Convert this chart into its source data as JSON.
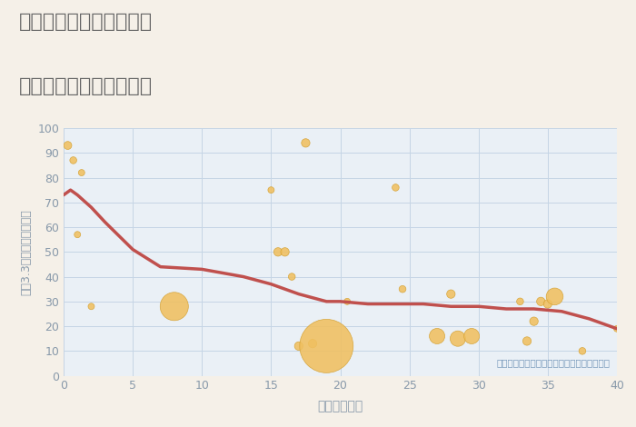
{
  "title_line1": "三重県津市白山町古市の",
  "title_line2": "築年数別中古戸建て価格",
  "xlabel": "築年数（年）",
  "ylabel": "坪（3.3㎡）単価（万円）",
  "bg_color": "#f5f0e8",
  "plot_bg_color": "#eaf0f6",
  "grid_color": "#c5d5e5",
  "title_color": "#666666",
  "axis_color": "#8899aa",
  "annotation": "円の大きさは、取引のあった物件面積を示す",
  "annotation_color": "#7799bb",
  "xlim": [
    0,
    40
  ],
  "ylim": [
    0,
    100
  ],
  "xticks": [
    0,
    5,
    10,
    15,
    20,
    25,
    30,
    35,
    40
  ],
  "yticks": [
    0,
    10,
    20,
    30,
    40,
    50,
    60,
    70,
    80,
    90,
    100
  ],
  "scatter_color": "#f0c060",
  "scatter_edge_color": "#d4a030",
  "line_color": "#c0504d",
  "line_width": 2.5,
  "scatter_x": [
    0.3,
    0.7,
    1.0,
    1.3,
    2.0,
    8.0,
    15.0,
    15.5,
    16.0,
    16.5,
    17.0,
    17.5,
    18.0,
    19.0,
    20.5,
    24.0,
    24.5,
    27.0,
    28.0,
    28.5,
    29.5,
    33.0,
    33.5,
    34.0,
    34.5,
    35.0,
    35.5,
    37.5,
    40.0
  ],
  "scatter_y": [
    93,
    87,
    57,
    82,
    28,
    28,
    75,
    50,
    50,
    40,
    12,
    94,
    13,
    12,
    30,
    76,
    35,
    16,
    33,
    15,
    16,
    30,
    14,
    22,
    30,
    29,
    32,
    10,
    19
  ],
  "scatter_size": [
    40,
    30,
    25,
    25,
    25,
    500,
    25,
    45,
    45,
    30,
    45,
    45,
    45,
    1800,
    25,
    30,
    30,
    150,
    45,
    150,
    150,
    30,
    45,
    45,
    45,
    45,
    180,
    30,
    25
  ],
  "line_x": [
    0,
    0.5,
    1,
    2,
    3,
    5,
    7,
    10,
    13,
    15,
    17,
    19,
    20,
    22,
    24,
    26,
    28,
    30,
    32,
    34,
    36,
    38,
    40
  ],
  "line_y": [
    73,
    75,
    73,
    68,
    62,
    51,
    44,
    43,
    40,
    37,
    33,
    30,
    30,
    29,
    29,
    29,
    28,
    28,
    27,
    27,
    26,
    23,
    19
  ]
}
